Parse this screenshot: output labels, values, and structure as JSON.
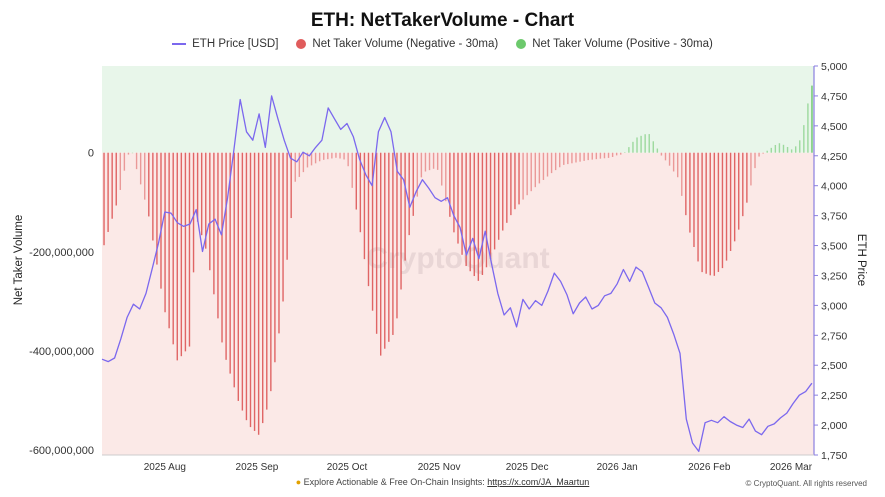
{
  "chart_data": {
    "type": "bar+line",
    "title": "ETH: NetTakerVolume - Chart",
    "legend": [
      {
        "label": "ETH Price [USD]",
        "color": "#7b68ee",
        "kind": "line"
      },
      {
        "label": "Net Taker Volume (Negative - 30ma)",
        "color": "#e05c5c",
        "kind": "dot"
      },
      {
        "label": "Net Taker Volume (Positive - 30ma)",
        "color": "#6cc96c",
        "kind": "dot"
      }
    ],
    "ylabel_left": "Net Taker Volume",
    "ylabel_right": "ETH Price",
    "left_axis": {
      "range": [
        -610000000,
        175000000
      ],
      "ticks": [
        0,
        -200000000,
        -400000000,
        -600000000
      ],
      "tick_labels": [
        "0",
        "-200,000,000",
        "-400,000,000",
        "-600,000,000"
      ]
    },
    "right_axis": {
      "range": [
        1750,
        5000
      ],
      "ticks": [
        5000,
        4750,
        4500,
        4250,
        4000,
        3750,
        3500,
        3250,
        3000,
        2750,
        2500,
        2250,
        2000,
        1750
      ],
      "tick_labels": [
        "5,000",
        "4,750",
        "4,500",
        "4,250",
        "4,000",
        "3,750",
        "3,500",
        "3,250",
        "3,000",
        "2,750",
        "2,500",
        "2,250",
        "2,000",
        "1,750"
      ]
    },
    "x_range_weeks": [
      0,
      34
    ],
    "x_ticks": [
      {
        "label": "2025 Aug",
        "week": 3
      },
      {
        "label": "2025 Sep",
        "week": 7.4
      },
      {
        "label": "2025 Oct",
        "week": 11.7
      },
      {
        "label": "2025 Nov",
        "week": 16.1
      },
      {
        "label": "2025 Dec",
        "week": 20.3
      },
      {
        "label": "2026 Jan",
        "week": 24.6
      },
      {
        "label": "2026 Feb",
        "week": 29
      },
      {
        "label": "2026 Mar",
        "week": 32.9
      }
    ],
    "net_taker_volume_keypoints": {
      "weeks": [
        0,
        0.8,
        1.2,
        1.4,
        1.6,
        2.2,
        3,
        3.6,
        4.2,
        4.5,
        5,
        5.8,
        6.5,
        7,
        7.5,
        8,
        8.6,
        9.2,
        9.8,
        10.5,
        11.2,
        11.7,
        12.3,
        12.8,
        13.3,
        14,
        14.6,
        15.3,
        16,
        16.8,
        17.4,
        18,
        18.5,
        19.1,
        19.6,
        20.2,
        20.8,
        21.5,
        22,
        22.6,
        23.2,
        23.8,
        24.3,
        24.6,
        24.9,
        25.5,
        26.1,
        26.7,
        27,
        27.5,
        28,
        28.6,
        29.2,
        29.7,
        30.3,
        30.8,
        31.3,
        31.8,
        32.3,
        32.6,
        33,
        33.4,
        33.8,
        34
      ],
      "values": [
        -200000000,
        -90000000,
        -10000000,
        10000000,
        -25000000,
        -120000000,
        -320000000,
        -420000000,
        -390000000,
        -130000000,
        -200000000,
        -400000000,
        -500000000,
        -550000000,
        -570000000,
        -500000000,
        -320000000,
        -60000000,
        -30000000,
        -15000000,
        -10000000,
        -15000000,
        -150000000,
        -290000000,
        -410000000,
        -360000000,
        -180000000,
        -40000000,
        -30000000,
        -160000000,
        -230000000,
        -260000000,
        -220000000,
        -160000000,
        -120000000,
        -90000000,
        -65000000,
        -40000000,
        -25000000,
        -20000000,
        -15000000,
        -12000000,
        -10000000,
        -5000000,
        -3000000,
        30000000,
        40000000,
        -5000000,
        -20000000,
        -50000000,
        -150000000,
        -240000000,
        -250000000,
        -230000000,
        -170000000,
        -100000000,
        -10000000,
        5000000,
        20000000,
        15000000,
        5000000,
        30000000,
        120000000,
        150000000
      ]
    },
    "eth_price_keypoints": {
      "weeks": [
        0,
        0.3,
        0.6,
        0.9,
        1.2,
        1.5,
        1.8,
        2.1,
        2.4,
        2.7,
        3.0,
        3.3,
        3.6,
        3.9,
        4.2,
        4.5,
        4.8,
        5.1,
        5.4,
        5.7,
        6.0,
        6.3,
        6.6,
        6.9,
        7.2,
        7.5,
        7.8,
        8.1,
        8.4,
        8.7,
        9.0,
        9.3,
        9.6,
        9.9,
        10.2,
        10.5,
        10.8,
        11.1,
        11.4,
        11.7,
        12.0,
        12.3,
        12.6,
        12.9,
        13.2,
        13.5,
        13.8,
        14.1,
        14.4,
        14.7,
        15.0,
        15.3,
        15.6,
        15.9,
        16.2,
        16.5,
        16.8,
        17.1,
        17.4,
        17.7,
        18.0,
        18.3,
        18.6,
        18.9,
        19.2,
        19.5,
        19.8,
        20.1,
        20.4,
        20.7,
        21.0,
        21.3,
        21.6,
        21.9,
        22.2,
        22.5,
        22.8,
        23.1,
        23.4,
        23.7,
        24.0,
        24.3,
        24.6,
        24.9,
        25.2,
        25.5,
        25.8,
        26.1,
        26.4,
        26.7,
        27.0,
        27.3,
        27.6,
        27.9,
        28.2,
        28.5,
        28.8,
        29.1,
        29.4,
        29.7,
        30.0,
        30.3,
        30.6,
        30.9,
        31.2,
        31.5,
        31.8,
        32.1,
        32.4,
        32.7,
        33.0,
        33.3,
        33.6,
        33.9
      ],
      "values": [
        2550,
        2530,
        2560,
        2720,
        2900,
        3010,
        2970,
        3100,
        3310,
        3520,
        3780,
        3770,
        3690,
        3660,
        3680,
        3800,
        3450,
        3680,
        3720,
        3590,
        3900,
        4300,
        4720,
        4450,
        4380,
        4600,
        4320,
        4750,
        4560,
        4380,
        4230,
        4200,
        4280,
        4250,
        4320,
        4380,
        4650,
        4560,
        4470,
        4520,
        4410,
        4220,
        4090,
        4000,
        4450,
        4570,
        4450,
        4120,
        4050,
        3820,
        3950,
        4050,
        3980,
        3900,
        3870,
        3900,
        3750,
        3650,
        3420,
        3560,
        3390,
        3620,
        3350,
        3100,
        2920,
        2980,
        2820,
        3050,
        2970,
        3040,
        3000,
        3120,
        3270,
        3200,
        3090,
        2930,
        3020,
        3070,
        2970,
        3000,
        3080,
        3100,
        3180,
        3300,
        3200,
        3320,
        3280,
        3150,
        3020,
        2980,
        2900,
        2760,
        2600,
        2050,
        1850,
        1780,
        2020,
        2040,
        2020,
        2070,
        2030,
        2000,
        1980,
        2050,
        1950,
        1920,
        1990,
        2010,
        2060,
        2100,
        2180,
        2250,
        2280,
        2350
      ]
    }
  },
  "watermark": "CryptoQuant",
  "footer": {
    "text": "Explore Actionable & Free On-Chain Insights: ",
    "link": "https://x.com/JA_Maartun",
    "copyright": "© CryptoQuant. All rights reserved"
  }
}
